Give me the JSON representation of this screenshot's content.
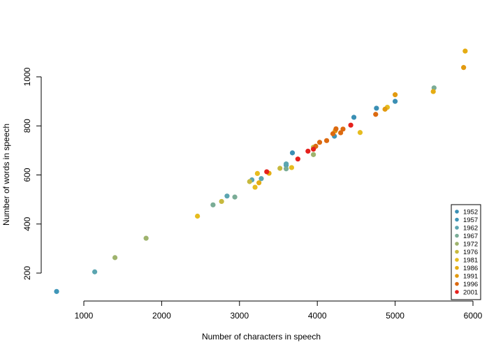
{
  "chart_data": {
    "type": "scatter",
    "title": "",
    "xlabel": "Number of characters in speech",
    "ylabel": "Number of words in speech",
    "xlim": [
      400,
      6050
    ],
    "ylim": [
      90,
      1120
    ],
    "xticks": [
      1000,
      2000,
      3000,
      4000,
      5000,
      6000
    ],
    "yticks": [
      200,
      400,
      600,
      800,
      1000
    ],
    "xtick_labels": [
      "1000",
      "2000",
      "3000",
      "4000",
      "5000",
      "6000"
    ],
    "ytick_labels": [
      "200",
      "400",
      "600",
      "800",
      "1000"
    ],
    "grid": false,
    "legend_position": "bottom-right",
    "series": [
      {
        "name": "1952",
        "color": "#3a8fb4",
        "points": [
          [
            3680,
            690
          ],
          [
            4470,
            835
          ],
          [
            5000,
            900
          ],
          [
            4760,
            872
          ]
        ]
      },
      {
        "name": "1957",
        "color": "#3f96b8",
        "points": [
          [
            650,
            125
          ],
          [
            3600,
            640
          ],
          [
            4220,
            758
          ]
        ]
      },
      {
        "name": "1962",
        "color": "#5ba5b0",
        "points": [
          [
            1140,
            205
          ],
          [
            2840,
            514
          ],
          [
            3160,
            580
          ],
          [
            3280,
            585
          ],
          [
            3600,
            645
          ]
        ]
      },
      {
        "name": "1967",
        "color": "#7aac96",
        "points": [
          [
            2660,
            478
          ],
          [
            2940,
            510
          ],
          [
            3600,
            625
          ],
          [
            5500,
            955
          ]
        ]
      },
      {
        "name": "1972",
        "color": "#9eb36d",
        "points": [
          [
            1400,
            263
          ],
          [
            1800,
            342
          ],
          [
            3950,
            683
          ]
        ]
      },
      {
        "name": "1976",
        "color": "#c7b93e",
        "points": [
          [
            2770,
            492
          ],
          [
            3130,
            573
          ],
          [
            3520,
            627
          ],
          [
            3950,
            713
          ]
        ]
      },
      {
        "name": "1981",
        "color": "#e6bc1f",
        "points": [
          [
            2460,
            432
          ],
          [
            3200,
            550
          ],
          [
            3230,
            606
          ],
          [
            3670,
            630
          ],
          [
            4550,
            773
          ],
          [
            4900,
            876
          ]
        ]
      },
      {
        "name": "1986",
        "color": "#e5ac12",
        "points": [
          [
            3250,
            568
          ],
          [
            3380,
            607
          ],
          [
            5490,
            940
          ],
          [
            5900,
            1105
          ]
        ]
      },
      {
        "name": "1991",
        "color": "#e29a10",
        "points": [
          [
            4870,
            868
          ],
          [
            5000,
            927
          ],
          [
            5880,
            1038
          ],
          [
            4230,
            780
          ]
        ]
      },
      {
        "name": "1996",
        "color": "#dc6a10",
        "points": [
          [
            3980,
            717
          ],
          [
            4030,
            733
          ],
          [
            4120,
            740
          ],
          [
            4200,
            768
          ],
          [
            4240,
            788
          ],
          [
            4300,
            772
          ],
          [
            4330,
            787
          ],
          [
            4750,
            847
          ]
        ]
      },
      {
        "name": "2001",
        "color": "#e5201c",
        "points": [
          [
            3350,
            613
          ],
          [
            3750,
            665
          ],
          [
            3880,
            697
          ],
          [
            3950,
            705
          ],
          [
            4430,
            803
          ]
        ]
      }
    ]
  }
}
